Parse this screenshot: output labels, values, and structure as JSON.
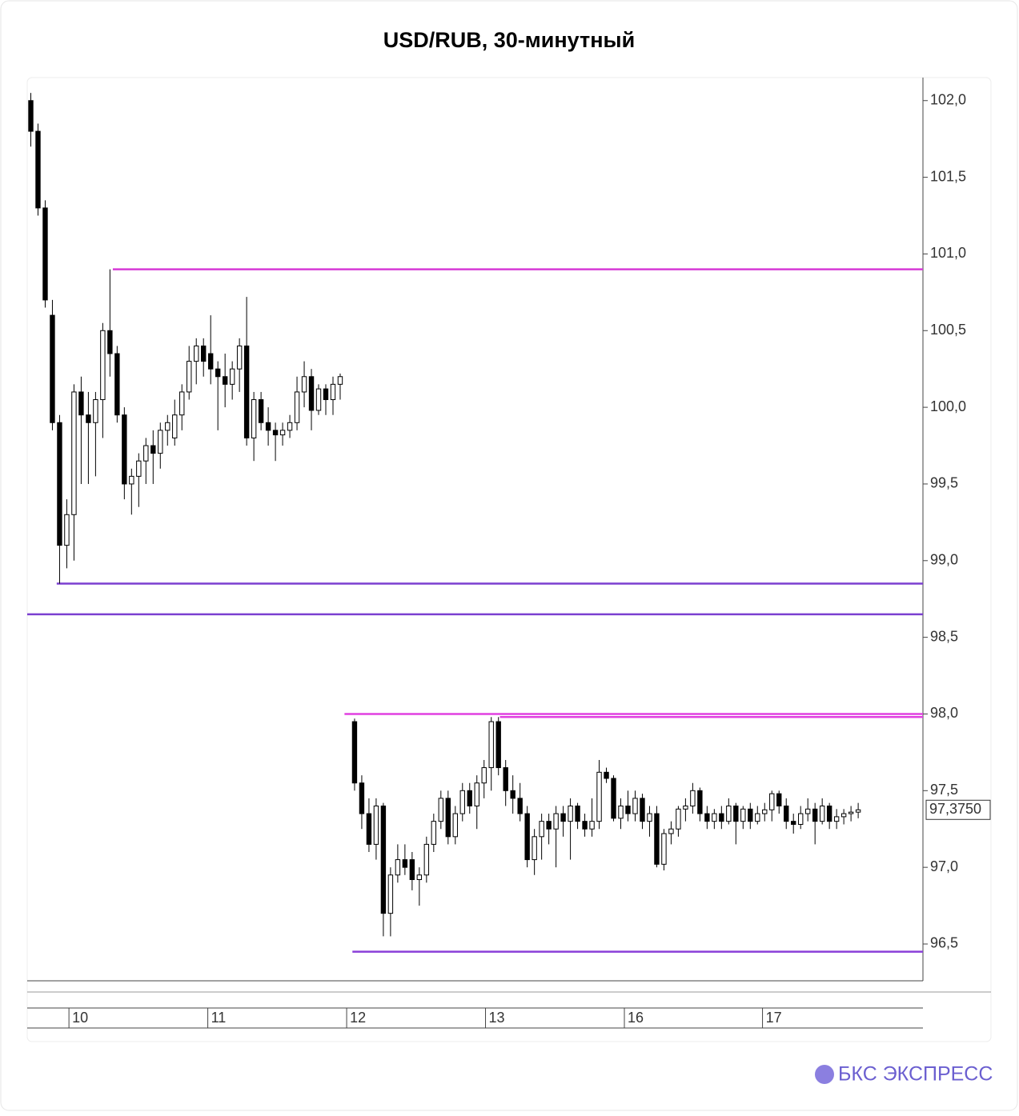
{
  "chart_data": {
    "type": "candlestick",
    "title": "USD/RUB, 30-минутный",
    "ylim": [
      96.26,
      102.15
    ],
    "yticks": [
      {
        "value": 96.5,
        "label": "96,5"
      },
      {
        "value": 97,
        "label": "97,0"
      },
      {
        "value": 97.5,
        "label": "97,5"
      },
      {
        "value": 98,
        "label": "98,0"
      },
      {
        "value": 98.5,
        "label": "98,5"
      },
      {
        "value": 99,
        "label": "99,0"
      },
      {
        "value": 99.5,
        "label": "99,5"
      },
      {
        "value": 100,
        "label": "100,0"
      },
      {
        "value": 100.5,
        "label": "100,5"
      },
      {
        "value": 101,
        "label": "101,0"
      },
      {
        "value": 101.5,
        "label": "101,5"
      },
      {
        "value": 102,
        "label": "102,0"
      }
    ],
    "xlim": [
      -0.5,
      124
    ],
    "xticks": [
      {
        "value": 5.3,
        "label": "10"
      },
      {
        "value": 24.6,
        "label": "11"
      },
      {
        "value": 43.9,
        "label": "12"
      },
      {
        "value": 63.2,
        "label": "13"
      },
      {
        "value": 82.5,
        "label": "16"
      },
      {
        "value": 101.7,
        "label": "17"
      }
    ],
    "up_color": "#ffffff",
    "down_color": "#000000",
    "candles": [
      [
        102.0,
        102.05,
        101.7,
        101.8
      ],
      [
        101.8,
        101.85,
        101.25,
        101.3
      ],
      [
        101.3,
        101.35,
        100.65,
        100.7
      ],
      [
        100.6,
        100.7,
        99.85,
        99.9
      ],
      [
        99.9,
        99.95,
        98.85,
        99.1
      ],
      [
        99.1,
        99.4,
        98.95,
        99.3
      ],
      [
        99.3,
        100.15,
        99.0,
        100.1
      ],
      [
        100.1,
        100.2,
        99.5,
        99.95
      ],
      [
        99.95,
        100.1,
        99.5,
        99.9
      ],
      [
        99.9,
        100.1,
        99.55,
        100.05
      ],
      [
        100.05,
        100.55,
        99.8,
        100.5
      ],
      [
        100.5,
        100.9,
        100.2,
        100.35
      ],
      [
        100.35,
        100.4,
        99.9,
        99.95
      ],
      [
        99.95,
        100.0,
        99.4,
        99.5
      ],
      [
        99.5,
        99.6,
        99.3,
        99.55
      ],
      [
        99.55,
        99.7,
        99.35,
        99.65
      ],
      [
        99.65,
        99.8,
        99.5,
        99.75
      ],
      [
        99.75,
        99.85,
        99.5,
        99.7
      ],
      [
        99.7,
        99.9,
        99.6,
        99.85
      ],
      [
        99.85,
        99.95,
        99.75,
        99.9
      ],
      [
        99.8,
        100.05,
        99.75,
        99.95
      ],
      [
        99.95,
        100.15,
        99.85,
        100.1
      ],
      [
        100.1,
        100.4,
        100.05,
        100.3
      ],
      [
        100.3,
        100.45,
        100.15,
        100.4
      ],
      [
        100.4,
        100.45,
        100.2,
        100.3
      ],
      [
        100.35,
        100.6,
        100.15,
        100.25
      ],
      [
        100.25,
        100.3,
        99.85,
        100.2
      ],
      [
        100.2,
        100.35,
        100.0,
        100.15
      ],
      [
        100.15,
        100.3,
        100.05,
        100.25
      ],
      [
        100.25,
        100.45,
        100.1,
        100.4
      ],
      [
        100.4,
        100.72,
        99.75,
        99.8
      ],
      [
        99.8,
        100.1,
        99.65,
        100.05
      ],
      [
        100.05,
        100.1,
        99.85,
        99.9
      ],
      [
        99.9,
        100.0,
        99.75,
        99.85
      ],
      [
        99.85,
        99.9,
        99.65,
        99.82
      ],
      [
        99.82,
        99.9,
        99.75,
        99.85
      ],
      [
        99.85,
        99.95,
        99.8,
        99.9
      ],
      [
        99.9,
        100.2,
        99.85,
        100.1
      ],
      [
        100.1,
        100.3,
        100.0,
        100.2
      ],
      [
        100.2,
        100.25,
        99.85,
        99.98
      ],
      [
        99.98,
        100.15,
        99.95,
        100.12
      ],
      [
        100.12,
        100.15,
        99.95,
        100.05
      ],
      [
        100.05,
        100.2,
        99.95,
        100.15
      ],
      [
        100.15,
        100.22,
        100.05,
        100.2
      ],
      null,
      [
        97.95,
        97.97,
        97.5,
        97.55
      ],
      [
        97.55,
        97.6,
        97.25,
        97.35
      ],
      [
        97.35,
        97.45,
        97.1,
        97.15
      ],
      [
        97.15,
        97.45,
        97.05,
        97.4
      ],
      [
        97.4,
        97.42,
        96.55,
        96.7
      ],
      [
        96.7,
        97.0,
        96.55,
        96.95
      ],
      [
        96.95,
        97.15,
        96.9,
        97.05
      ],
      [
        97.05,
        97.15,
        96.95,
        97.0
      ],
      [
        97.05,
        97.1,
        96.85,
        96.92
      ],
      [
        96.92,
        97.0,
        96.75,
        96.95
      ],
      [
        96.95,
        97.2,
        96.9,
        97.15
      ],
      [
        97.15,
        97.35,
        97.1,
        97.3
      ],
      [
        97.3,
        97.5,
        97.25,
        97.45
      ],
      [
        97.45,
        97.5,
        97.15,
        97.2
      ],
      [
        97.2,
        97.4,
        97.15,
        97.35
      ],
      [
        97.35,
        97.55,
        97.3,
        97.5
      ],
      [
        97.5,
        97.55,
        97.35,
        97.4
      ],
      [
        97.4,
        97.6,
        97.25,
        97.55
      ],
      [
        97.55,
        97.7,
        97.45,
        97.65
      ],
      [
        97.65,
        97.98,
        97.5,
        97.95
      ],
      [
        97.95,
        97.98,
        97.6,
        97.65
      ],
      [
        97.65,
        97.7,
        97.4,
        97.5
      ],
      [
        97.5,
        97.6,
        97.35,
        97.45
      ],
      [
        97.45,
        97.55,
        97.3,
        97.35
      ],
      [
        97.35,
        97.4,
        97.0,
        97.05
      ],
      [
        97.05,
        97.25,
        96.95,
        97.2
      ],
      [
        97.2,
        97.35,
        97.05,
        97.3
      ],
      [
        97.3,
        97.35,
        97.15,
        97.25
      ],
      [
        97.25,
        97.4,
        97.0,
        97.35
      ],
      [
        97.35,
        97.4,
        97.2,
        97.3
      ],
      [
        97.3,
        97.45,
        97.05,
        97.4
      ],
      [
        97.4,
        97.42,
        97.25,
        97.3
      ],
      [
        97.3,
        97.35,
        97.2,
        97.25
      ],
      [
        97.25,
        97.45,
        97.2,
        97.3
      ],
      [
        97.3,
        97.7,
        97.25,
        97.62
      ],
      [
        97.62,
        97.65,
        97.55,
        97.58
      ],
      [
        97.58,
        97.6,
        97.3,
        97.32
      ],
      [
        97.32,
        97.45,
        97.25,
        97.4
      ],
      [
        97.4,
        97.5,
        97.3,
        97.35
      ],
      [
        97.35,
        97.5,
        97.3,
        97.45
      ],
      [
        97.45,
        97.48,
        97.25,
        97.3
      ],
      [
        97.3,
        97.4,
        97.2,
        97.35
      ],
      [
        97.35,
        97.4,
        97.0,
        97.02
      ],
      [
        97.02,
        97.25,
        96.98,
        97.22
      ],
      [
        97.22,
        97.3,
        97.15,
        97.25
      ],
      [
        97.25,
        97.4,
        97.2,
        97.38
      ],
      [
        97.38,
        97.45,
        97.3,
        97.4
      ],
      [
        97.4,
        97.55,
        97.35,
        97.5
      ],
      [
        97.5,
        97.52,
        97.3,
        97.35
      ],
      [
        97.35,
        97.4,
        97.25,
        97.3
      ],
      [
        97.3,
        97.38,
        97.25,
        97.35
      ],
      [
        97.35,
        97.4,
        97.25,
        97.3
      ],
      [
        97.3,
        97.45,
        97.28,
        97.4
      ],
      [
        97.4,
        97.42,
        97.15,
        97.3
      ],
      [
        97.3,
        97.4,
        97.25,
        97.38
      ],
      [
        97.38,
        97.42,
        97.25,
        97.3
      ],
      [
        97.3,
        97.4,
        97.28,
        97.35
      ],
      [
        97.35,
        97.42,
        97.3,
        97.375
      ],
      [
        97.375,
        97.5,
        97.3,
        97.48
      ],
      [
        97.48,
        97.5,
        97.35,
        97.4
      ],
      [
        97.4,
        97.45,
        97.25,
        97.3
      ],
      [
        97.3,
        97.35,
        97.22,
        97.28
      ],
      [
        97.28,
        97.4,
        97.25,
        97.35
      ],
      [
        97.35,
        97.45,
        97.3,
        97.38
      ],
      [
        97.38,
        97.42,
        97.15,
        97.3
      ],
      [
        97.3,
        97.45,
        97.28,
        97.4
      ],
      [
        97.4,
        97.42,
        97.25,
        97.3
      ],
      [
        97.3,
        97.38,
        97.25,
        97.33
      ],
      [
        97.33,
        97.38,
        97.28,
        97.35
      ],
      [
        97.35,
        97.4,
        97.3,
        97.36
      ],
      [
        97.36,
        97.42,
        97.32,
        97.375
      ]
    ],
    "levels": [
      {
        "value": 100.9,
        "from": 11.4,
        "color": "#d63ad6"
      },
      {
        "value": 98.85,
        "from": 3.6,
        "color": "#7b3fd0"
      },
      {
        "value": 98.65,
        "from": -0.5,
        "color": "#7b3fd0"
      },
      {
        "value": 98.0,
        "from": 43.6,
        "color": "#e040e0"
      },
      {
        "value": 97.98,
        "from": 65.2,
        "color": "#e040e0"
      },
      {
        "value": 96.45,
        "from": 44.7,
        "color": "#8a3fd8"
      }
    ],
    "last_price": {
      "value": 97.375,
      "label": "97,3750"
    },
    "brand": "БКС ЭКСПРЕСС"
  }
}
